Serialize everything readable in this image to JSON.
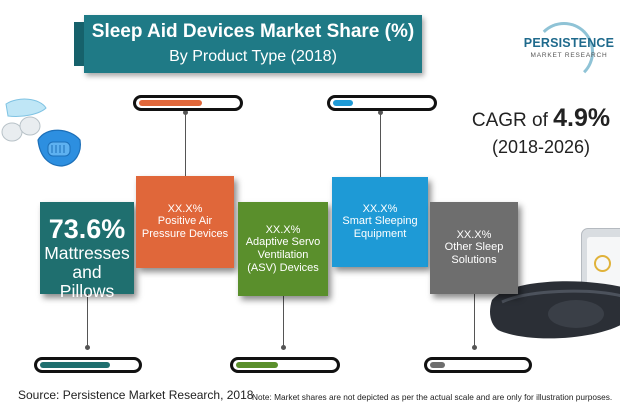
{
  "header": {
    "title": "Sleep Aid Devices Market Share (%)",
    "subtitle": "By Product Type (2018)"
  },
  "logo": {
    "brand": "PERSISTENCE",
    "sub": "MARKET RESEARCH"
  },
  "cagr": {
    "prefix": "CAGR of",
    "value": "4.9%",
    "period": "(2018-2026)"
  },
  "chart_data": {
    "type": "bar",
    "title": "Sleep Aid Devices Market Share (%)",
    "subtitle": "By Product Type (2018)",
    "categories": [
      "Mattresses and Pillows",
      "Positive Air Pressure Devices",
      "Adaptive Servo Ventilation (ASV) Devices",
      "Smart Sleeping Equipment",
      "Other Sleep Solutions"
    ],
    "value_labels": [
      "73.6%",
      "XX.X%",
      "XX.X%",
      "XX.X%",
      "XX.X%"
    ],
    "values": [
      73.6,
      null,
      null,
      null,
      null
    ],
    "indicator_fill": [
      0.73,
      0.64,
      0.43,
      0.2,
      0.16
    ],
    "colors": [
      "#1f6f6f",
      "#e0673a",
      "#5a8f2c",
      "#1e9ad6",
      "#6e6e6e"
    ],
    "note": "Note: Market shares are not depicted as per the actual scale and are only for illustration purposes."
  },
  "cards": [
    {
      "pct": "73.6%",
      "label": "Mattresses and Pillows"
    },
    {
      "pct": "XX.X%",
      "label": "Positive Air Pressure Devices"
    },
    {
      "pct": "XX.X%",
      "label": "Adaptive Servo Ventilation (ASV) Devices"
    },
    {
      "pct": "XX.X%",
      "label": "Smart Sleeping Equipment"
    },
    {
      "pct": "XX.X%",
      "label": "Other Sleep Solutions"
    }
  ],
  "footer": {
    "source": "Source: Persistence Market Research, 2018",
    "note": "Note: Market shares are not depicted as per the actual scale and are only for illustration purposes."
  },
  "icons": [
    "nasal-device-icon",
    "phone-icon",
    "sleep-mask-icon"
  ]
}
